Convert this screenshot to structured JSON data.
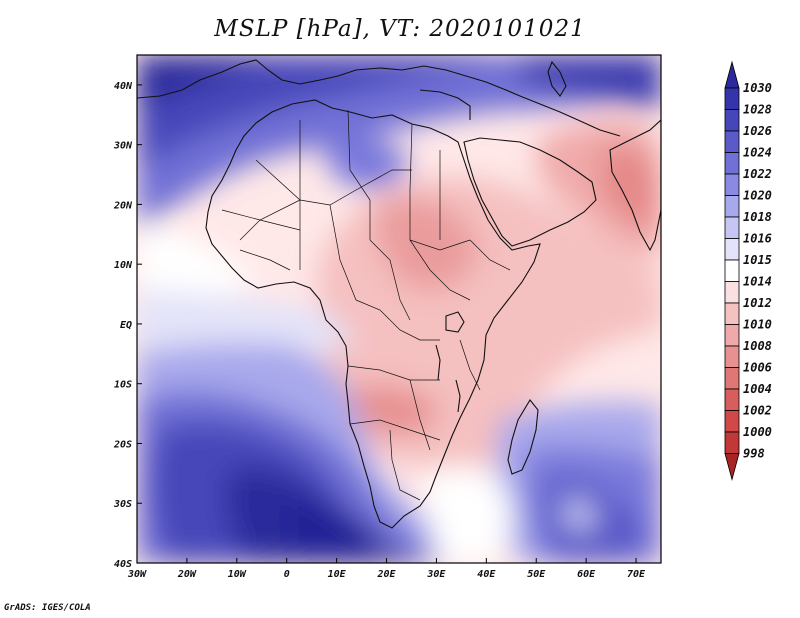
{
  "title": "MSLP [hPa], VT: 2020101021",
  "credit": "GrADS: IGES/COLA",
  "longitude_ticks": [
    "30W",
    "20W",
    "10W",
    "0",
    "10E",
    "20E",
    "30E",
    "40E",
    "50E",
    "60E",
    "70E"
  ],
  "longitude_values": [
    -30,
    -20,
    -10,
    0,
    10,
    20,
    30,
    40,
    50,
    60,
    70
  ],
  "latitude_ticks": [
    "40N",
    "30N",
    "20N",
    "10N",
    "EQ",
    "10S",
    "20S",
    "30S",
    "40S"
  ],
  "latitude_values": [
    40,
    30,
    20,
    10,
    0,
    -10,
    -20,
    -30,
    -40
  ],
  "extent": {
    "lon_min": -30,
    "lon_max": 75,
    "lat_min": -40,
    "lat_max": 45
  },
  "colorbar": {
    "unit": "hPa",
    "levels": [
      "1030",
      "1028",
      "1026",
      "1024",
      "1022",
      "1020",
      "1018",
      "1016",
      "1015",
      "1014",
      "1012",
      "1010",
      "1008",
      "1006",
      "1004",
      "1002",
      "1000",
      "998"
    ],
    "colors": [
      "#2a2a9c",
      "#3535ab",
      "#4646ba",
      "#5a5ac9",
      "#7070d6",
      "#8a8ae2",
      "#a8a8ec",
      "#c6c6f4",
      "#e3e3f9",
      "#ffffff",
      "#fae0e0",
      "#f5c2c2",
      "#eeaaaa",
      "#e79191",
      "#e07676",
      "#d85e5e",
      "#d04848",
      "#c23737",
      "#a92323"
    ]
  }
}
